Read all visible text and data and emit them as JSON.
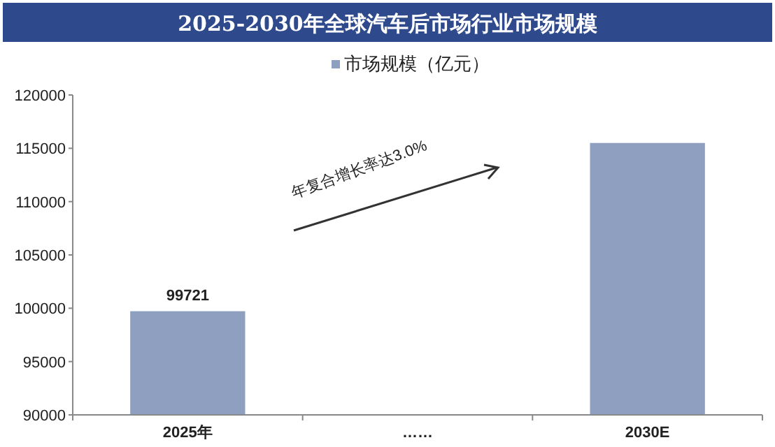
{
  "chart_data": {
    "type": "bar",
    "title": "2025-2030年全球汽车后市场行业市场规模",
    "categories": [
      "2025年",
      "……",
      "2030E"
    ],
    "series": [
      {
        "name": "市场规模（亿元）",
        "color": "#8e9fc0",
        "values": [
          99721,
          null,
          115500
        ],
        "value_labels": [
          "99721",
          null,
          null
        ]
      }
    ],
    "ylim": [
      90000,
      120000
    ],
    "yticks": [
      90000,
      95000,
      100000,
      105000,
      110000,
      115000,
      120000
    ],
    "annotations": [
      "年复合增长率达3.0%"
    ],
    "legend": "top",
    "grid": false
  }
}
